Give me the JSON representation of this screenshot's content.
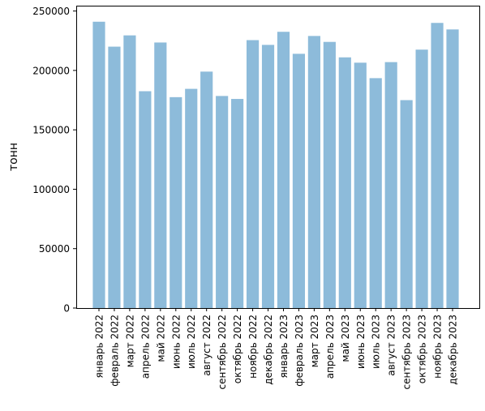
{
  "chart_data": {
    "type": "bar",
    "title": "",
    "xlabel": "",
    "ylabel": "тонн",
    "ylim": [
      0,
      250000
    ],
    "yticks": [
      0,
      50000,
      100000,
      150000,
      200000,
      250000
    ],
    "grid": false,
    "bar_color": "#8dbbda",
    "categories": [
      "январь 2022",
      "февраль 2022",
      "март 2022",
      "апрель 2022",
      "май 2022",
      "июнь 2022",
      "июль 2022",
      "август 2022",
      "сентябрь 2022",
      "октябрь 2022",
      "ноябрь 2022",
      "декабрь 2022",
      "январь 2023",
      "февраль 2023",
      "март 2023",
      "апрель 2023",
      "май 2023",
      "июнь 2023",
      "июль 2023",
      "август 2023",
      "сентябрь 2023",
      "октябрь 2023",
      "ноябрь 2023",
      "декабрь 2023"
    ],
    "values": [
      241000,
      220000,
      229500,
      182500,
      223500,
      177500,
      184500,
      199000,
      178500,
      176000,
      225500,
      221500,
      232500,
      214000,
      229000,
      224000,
      211000,
      206500,
      193500,
      207000,
      175000,
      217500,
      240000,
      234500
    ]
  }
}
